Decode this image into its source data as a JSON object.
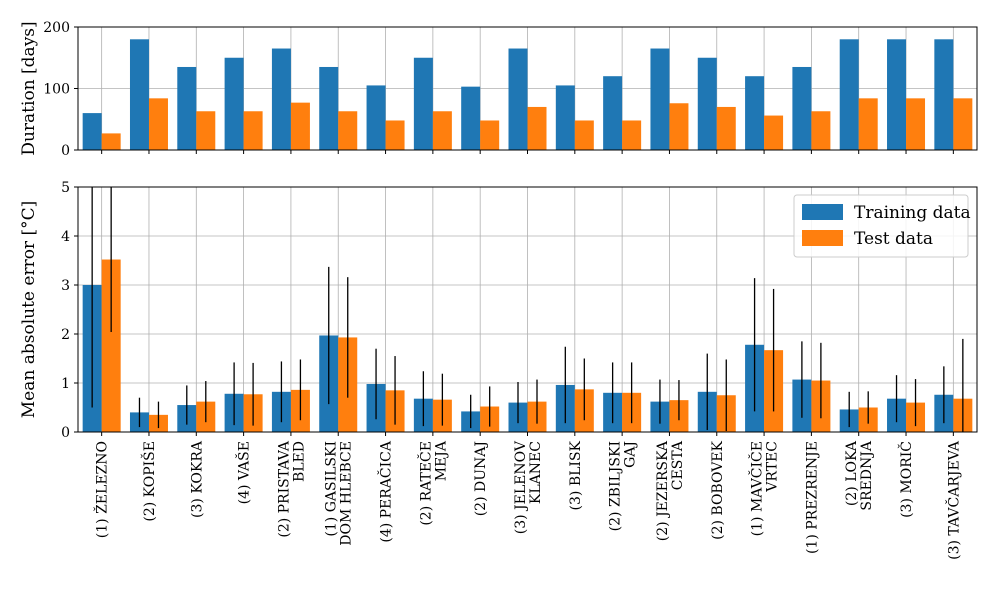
{
  "chart_data": [
    {
      "type": "bar",
      "ylabel": "Duration [days]",
      "ylim": [
        0,
        200
      ],
      "yticks": [
        0,
        100,
        200
      ],
      "grid": true,
      "series": [
        {
          "name": "Training data",
          "color": "#1f77b4",
          "values": [
            60,
            180,
            135,
            150,
            165,
            135,
            105,
            150,
            103,
            165,
            105,
            120,
            165,
            150,
            120,
            135,
            180,
            180,
            180
          ]
        },
        {
          "name": "Test data",
          "color": "#ff7f0e",
          "values": [
            27,
            84,
            63,
            63,
            77,
            63,
            48,
            63,
            48,
            70,
            48,
            48,
            76,
            70,
            56,
            63,
            84,
            84,
            84
          ]
        }
      ]
    },
    {
      "type": "bar",
      "ylabel": "Mean absolute error [°C]",
      "ylim": [
        0,
        5
      ],
      "yticks": [
        0,
        1,
        2,
        3,
        4,
        5
      ],
      "grid": true,
      "legend": "top-right",
      "categories": [
        [
          "(1) ŽELEZNO"
        ],
        [
          "(2) KOPIŠE"
        ],
        [
          "(3) KOKRA"
        ],
        [
          "(4) VAŠE"
        ],
        [
          "(2) PRISTAVA",
          "BLED"
        ],
        [
          "(1) GASILSKI",
          "DOM HLEBCE"
        ],
        [
          "(4) PERAČICA"
        ],
        [
          "(2) RATEČE",
          "MEJA"
        ],
        [
          "(2) DUNAJ"
        ],
        [
          "(3) JELENOV",
          "KLANEC"
        ],
        [
          "(3) BLISK"
        ],
        [
          "(2) ZBILJSKI",
          "GAJ"
        ],
        [
          "(2) JEZERSKA",
          "CESTA"
        ],
        [
          "(2) BOBOVEK"
        ],
        [
          "(1) MAVČIČE",
          "VRTEC"
        ],
        [
          "(1) PREZRENJE"
        ],
        [
          "(2) LOKA",
          "SREDNJA"
        ],
        [
          "(3) MORIČ"
        ],
        [
          "(3) TAVČARJEVA"
        ]
      ],
      "series": [
        {
          "name": "Training data",
          "color": "#1f77b4",
          "values": [
            3.0,
            0.4,
            0.55,
            0.78,
            0.82,
            1.97,
            0.98,
            0.68,
            0.42,
            0.6,
            0.96,
            0.8,
            0.62,
            0.82,
            1.78,
            1.07,
            0.46,
            0.68,
            0.76
          ],
          "errors": [
            2.5,
            0.3,
            0.4,
            0.64,
            0.62,
            1.4,
            0.72,
            0.56,
            0.34,
            0.42,
            0.78,
            0.62,
            0.45,
            0.78,
            1.36,
            0.78,
            0.36,
            0.48,
            0.58
          ]
        },
        {
          "name": "Test data",
          "color": "#ff7f0e",
          "values": [
            3.52,
            0.35,
            0.62,
            0.77,
            0.86,
            1.93,
            0.85,
            0.66,
            0.52,
            0.62,
            0.87,
            0.8,
            0.65,
            0.75,
            1.67,
            1.05,
            0.5,
            0.6,
            0.68
          ],
          "errors": [
            1.48,
            0.27,
            0.42,
            0.64,
            0.62,
            1.23,
            0.7,
            0.53,
            0.41,
            0.45,
            0.63,
            0.62,
            0.41,
            0.73,
            1.25,
            0.77,
            0.33,
            0.48,
            1.22
          ]
        }
      ]
    }
  ]
}
